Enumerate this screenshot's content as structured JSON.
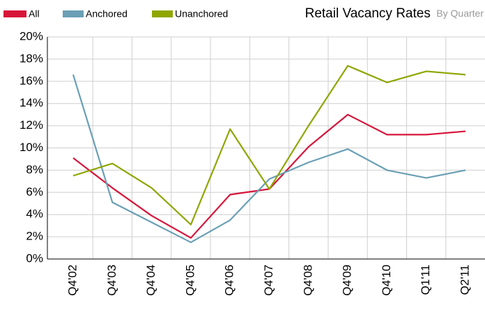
{
  "chart_data": {
    "type": "line",
    "title": "Retail Vacancy Rates",
    "subtitle": "By Quarter",
    "categories": [
      "Q4'02",
      "Q4'03",
      "Q4'04",
      "Q4'05",
      "Q4'06",
      "Q4'07",
      "Q4'08",
      "Q4'09",
      "Q4'10",
      "Q1'11",
      "Q2'11"
    ],
    "series": [
      {
        "name": "All",
        "color": "#d7153a",
        "values": [
          9.1,
          6.4,
          3.9,
          1.9,
          5.8,
          6.3,
          10.1,
          13.0,
          11.2,
          11.2,
          11.5
        ]
      },
      {
        "name": "Anchored",
        "color": "#6a9fb5",
        "values": [
          16.6,
          5.1,
          3.3,
          1.5,
          3.5,
          7.2,
          8.7,
          9.9,
          8.0,
          7.3,
          8.0
        ]
      },
      {
        "name": "Unanchored",
        "color": "#8fa600",
        "values": [
          7.5,
          8.6,
          6.4,
          3.1,
          11.7,
          6.3,
          12.0,
          17.4,
          15.9,
          16.9,
          16.6
        ]
      }
    ],
    "ylim": [
      0,
      20
    ],
    "yticks": [
      {
        "value": 0,
        "label": "0%"
      },
      {
        "value": 2,
        "label": "2%"
      },
      {
        "value": 4,
        "label": "4%"
      },
      {
        "value": 6,
        "label": "6%"
      },
      {
        "value": 8,
        "label": "8%"
      },
      {
        "value": 10,
        "label": "10%"
      },
      {
        "value": 12,
        "label": "12%"
      },
      {
        "value": 14,
        "label": "14%"
      },
      {
        "value": 16,
        "label": "16%"
      },
      {
        "value": 18,
        "label": "18%"
      },
      {
        "value": 20,
        "label": "20%"
      }
    ],
    "grid": true
  }
}
